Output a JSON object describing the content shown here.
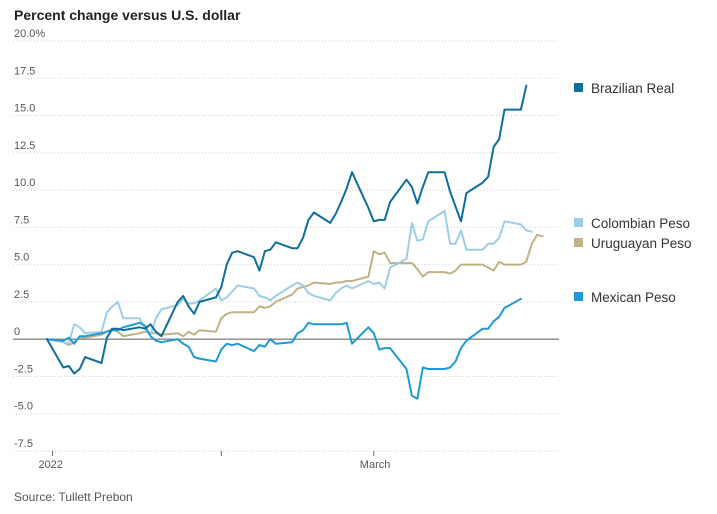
{
  "chart_data": {
    "type": "line",
    "title": "Percent change versus U.S. dollar",
    "source": "Source: Tullett Prebon",
    "xlabel": "",
    "ylabel": "",
    "ylim": [
      -7.5,
      20
    ],
    "y_ticks": [
      {
        "value": 20,
        "label": "20.0%"
      },
      {
        "value": 17.5,
        "label": "17.5"
      },
      {
        "value": 15,
        "label": "15.0"
      },
      {
        "value": 12.5,
        "label": "12.5"
      },
      {
        "value": 10,
        "label": "10.0"
      },
      {
        "value": 7.5,
        "label": "7.5"
      },
      {
        "value": 5,
        "label": "5.0"
      },
      {
        "value": 2.5,
        "label": "2.5"
      },
      {
        "value": 0,
        "label": "0"
      },
      {
        "value": -2.5,
        "label": "-2.5"
      },
      {
        "value": -5,
        "label": "-5.0"
      },
      {
        "value": -7.5,
        "label": "-7.5"
      }
    ],
    "x_range": [
      "2021-12-31",
      "2022-04-04"
    ],
    "x_ticks": [
      {
        "date": "2022-01-01",
        "label": "2022"
      },
      {
        "date": "2022-02-01",
        "label": ""
      },
      {
        "date": "2022-03-01",
        "label": "March"
      }
    ],
    "grid": true,
    "legend_placement": "right",
    "series": [
      {
        "name": "Brazilian Real",
        "color": "#0f6e9b",
        "points": [
          [
            "2021-12-31",
            0
          ],
          [
            "2022-01-03",
            -1.9
          ],
          [
            "2022-01-04",
            -1.8
          ],
          [
            "2022-01-05",
            -2.3
          ],
          [
            "2022-01-06",
            -2.0
          ],
          [
            "2022-01-07",
            -1.2
          ],
          [
            "2022-01-10",
            -1.6
          ],
          [
            "2022-01-11",
            0.1
          ],
          [
            "2022-01-12",
            0.7
          ],
          [
            "2022-01-13",
            0.7
          ],
          [
            "2022-01-14",
            0.6
          ],
          [
            "2022-01-17",
            0.8
          ],
          [
            "2022-01-18",
            0.7
          ],
          [
            "2022-01-19",
            1.0
          ],
          [
            "2022-01-20",
            0.5
          ],
          [
            "2022-01-21",
            0.2
          ],
          [
            "2022-01-24",
            2.5
          ],
          [
            "2022-01-25",
            2.9
          ],
          [
            "2022-01-26",
            2.2
          ],
          [
            "2022-01-27",
            1.7
          ],
          [
            "2022-01-28",
            2.5
          ],
          [
            "2022-01-31",
            2.8
          ],
          [
            "2022-02-01",
            3.5
          ],
          [
            "2022-02-02",
            5.0
          ],
          [
            "2022-02-03",
            5.8
          ],
          [
            "2022-02-04",
            5.9
          ],
          [
            "2022-02-07",
            5.5
          ],
          [
            "2022-02-08",
            4.6
          ],
          [
            "2022-02-09",
            5.9
          ],
          [
            "2022-02-10",
            6.0
          ],
          [
            "2022-02-11",
            6.5
          ],
          [
            "2022-02-14",
            6.1
          ],
          [
            "2022-02-15",
            6.1
          ],
          [
            "2022-02-16",
            6.8
          ],
          [
            "2022-02-17",
            8.0
          ],
          [
            "2022-02-18",
            8.5
          ],
          [
            "2022-02-21",
            7.8
          ],
          [
            "2022-02-22",
            8.4
          ],
          [
            "2022-02-23",
            9.2
          ],
          [
            "2022-02-24",
            10.1
          ],
          [
            "2022-02-25",
            11.2
          ],
          [
            "2022-02-28",
            8.8
          ],
          [
            "2022-03-01",
            7.9
          ],
          [
            "2022-03-02",
            8.0
          ],
          [
            "2022-03-03",
            8.0
          ],
          [
            "2022-03-04",
            9.2
          ],
          [
            "2022-03-07",
            10.7
          ],
          [
            "2022-03-08",
            10.2
          ],
          [
            "2022-03-09",
            9.1
          ],
          [
            "2022-03-10",
            10.2
          ],
          [
            "2022-03-11",
            11.2
          ],
          [
            "2022-03-14",
            11.2
          ],
          [
            "2022-03-15",
            9.9
          ],
          [
            "2022-03-16",
            8.9
          ],
          [
            "2022-03-17",
            7.9
          ],
          [
            "2022-03-18",
            9.8
          ],
          [
            "2022-03-21",
            10.5
          ],
          [
            "2022-03-22",
            10.9
          ],
          [
            "2022-03-23",
            12.9
          ],
          [
            "2022-03-24",
            13.4
          ],
          [
            "2022-03-25",
            15.4
          ],
          [
            "2022-03-28",
            15.4
          ],
          [
            "2022-03-29",
            17.0
          ]
        ]
      },
      {
        "name": "Colombian Peso",
        "color": "#9ecde6",
        "points": [
          [
            "2021-12-31",
            0
          ],
          [
            "2022-01-03",
            -0.2
          ],
          [
            "2022-01-04",
            -0.3
          ],
          [
            "2022-01-05",
            1.0
          ],
          [
            "2022-01-06",
            0.8
          ],
          [
            "2022-01-07",
            0.4
          ],
          [
            "2022-01-10",
            0.5
          ],
          [
            "2022-01-11",
            1.8
          ],
          [
            "2022-01-12",
            2.2
          ],
          [
            "2022-01-13",
            2.5
          ],
          [
            "2022-01-14",
            1.4
          ],
          [
            "2022-01-17",
            1.4
          ],
          [
            "2022-01-18",
            0.7
          ],
          [
            "2022-01-19",
            0.3
          ],
          [
            "2022-01-20",
            1.4
          ],
          [
            "2022-01-21",
            2.0
          ],
          [
            "2022-01-24",
            2.3
          ],
          [
            "2022-01-25",
            2.7
          ],
          [
            "2022-01-26",
            2.4
          ],
          [
            "2022-01-27",
            2.4
          ],
          [
            "2022-01-28",
            2.6
          ],
          [
            "2022-01-31",
            3.4
          ],
          [
            "2022-02-01",
            2.6
          ],
          [
            "2022-02-02",
            2.8
          ],
          [
            "2022-02-03",
            3.2
          ],
          [
            "2022-02-04",
            3.6
          ],
          [
            "2022-02-07",
            3.4
          ],
          [
            "2022-02-08",
            2.9
          ],
          [
            "2022-02-09",
            2.8
          ],
          [
            "2022-02-10",
            2.6
          ],
          [
            "2022-02-11",
            2.9
          ],
          [
            "2022-02-14",
            3.6
          ],
          [
            "2022-02-15",
            3.8
          ],
          [
            "2022-02-16",
            3.6
          ],
          [
            "2022-02-17",
            3.1
          ],
          [
            "2022-02-18",
            2.9
          ],
          [
            "2022-02-21",
            2.6
          ],
          [
            "2022-02-22",
            3.1
          ],
          [
            "2022-02-23",
            3.4
          ],
          [
            "2022-02-24",
            3.6
          ],
          [
            "2022-02-25",
            3.4
          ],
          [
            "2022-02-28",
            3.9
          ],
          [
            "2022-03-01",
            3.7
          ],
          [
            "2022-03-02",
            3.8
          ],
          [
            "2022-03-03",
            3.4
          ],
          [
            "2022-03-04",
            4.8
          ],
          [
            "2022-03-07",
            5.4
          ],
          [
            "2022-03-08",
            7.8
          ],
          [
            "2022-03-09",
            6.6
          ],
          [
            "2022-03-10",
            6.7
          ],
          [
            "2022-03-11",
            7.9
          ],
          [
            "2022-03-14",
            8.6
          ],
          [
            "2022-03-15",
            6.4
          ],
          [
            "2022-03-16",
            6.4
          ],
          [
            "2022-03-17",
            7.3
          ],
          [
            "2022-03-18",
            6.0
          ],
          [
            "2022-03-21",
            6.0
          ],
          [
            "2022-03-22",
            6.4
          ],
          [
            "2022-03-23",
            6.4
          ],
          [
            "2022-03-24",
            6.8
          ],
          [
            "2022-03-25",
            7.9
          ],
          [
            "2022-03-28",
            7.7
          ],
          [
            "2022-03-29",
            7.3
          ],
          [
            "2022-03-30",
            7.2
          ]
        ]
      },
      {
        "name": "Uruguayan Peso",
        "color": "#bfb285",
        "points": [
          [
            "2021-12-31",
            0
          ],
          [
            "2022-01-03",
            -0.2
          ],
          [
            "2022-01-04",
            -0.4
          ],
          [
            "2022-01-05",
            -0.2
          ],
          [
            "2022-01-06",
            0.1
          ],
          [
            "2022-01-07",
            0.1
          ],
          [
            "2022-01-10",
            0.3
          ],
          [
            "2022-01-11",
            0.5
          ],
          [
            "2022-01-12",
            0.7
          ],
          [
            "2022-01-13",
            0.5
          ],
          [
            "2022-01-14",
            0.2
          ],
          [
            "2022-01-17",
            0.4
          ],
          [
            "2022-01-18",
            0.5
          ],
          [
            "2022-01-19",
            0.4
          ],
          [
            "2022-01-20",
            0.4
          ],
          [
            "2022-01-21",
            0.3
          ],
          [
            "2022-01-24",
            0.4
          ],
          [
            "2022-01-25",
            0.2
          ],
          [
            "2022-01-26",
            0.5
          ],
          [
            "2022-01-27",
            0.3
          ],
          [
            "2022-01-28",
            0.6
          ],
          [
            "2022-01-31",
            0.5
          ],
          [
            "2022-02-01",
            1.4
          ],
          [
            "2022-02-02",
            1.7
          ],
          [
            "2022-02-03",
            1.8
          ],
          [
            "2022-02-04",
            1.8
          ],
          [
            "2022-02-07",
            1.8
          ],
          [
            "2022-02-08",
            2.2
          ],
          [
            "2022-02-09",
            2.1
          ],
          [
            "2022-02-10",
            2.2
          ],
          [
            "2022-02-11",
            2.5
          ],
          [
            "2022-02-14",
            3.0
          ],
          [
            "2022-02-15",
            3.4
          ],
          [
            "2022-02-16",
            3.5
          ],
          [
            "2022-02-17",
            3.6
          ],
          [
            "2022-02-18",
            3.8
          ],
          [
            "2022-02-21",
            3.7
          ],
          [
            "2022-02-22",
            3.8
          ],
          [
            "2022-02-23",
            3.8
          ],
          [
            "2022-02-24",
            3.9
          ],
          [
            "2022-02-25",
            3.9
          ],
          [
            "2022-02-28",
            4.2
          ],
          [
            "2022-03-01",
            5.9
          ],
          [
            "2022-03-02",
            5.7
          ],
          [
            "2022-03-03",
            5.8
          ],
          [
            "2022-03-04",
            5.1
          ],
          [
            "2022-03-07",
            5.1
          ],
          [
            "2022-03-08",
            5.1
          ],
          [
            "2022-03-09",
            4.7
          ],
          [
            "2022-03-10",
            4.2
          ],
          [
            "2022-03-11",
            4.5
          ],
          [
            "2022-03-14",
            4.5
          ],
          [
            "2022-03-15",
            4.4
          ],
          [
            "2022-03-16",
            4.6
          ],
          [
            "2022-03-17",
            5.0
          ],
          [
            "2022-03-18",
            5.0
          ],
          [
            "2022-03-21",
            5.0
          ],
          [
            "2022-03-22",
            4.8
          ],
          [
            "2022-03-23",
            4.6
          ],
          [
            "2022-03-24",
            5.2
          ],
          [
            "2022-03-25",
            5.0
          ],
          [
            "2022-03-28",
            5.0
          ],
          [
            "2022-03-29",
            5.2
          ],
          [
            "2022-03-30",
            6.4
          ],
          [
            "2022-03-31",
            7.0
          ],
          [
            "2022-04-01",
            6.9
          ]
        ]
      },
      {
        "name": "Mexican Peso",
        "color": "#1e9ad6",
        "points": [
          [
            "2021-12-31",
            0
          ],
          [
            "2022-01-03",
            -0.1
          ],
          [
            "2022-01-04",
            0.1
          ],
          [
            "2022-01-05",
            -0.3
          ],
          [
            "2022-01-06",
            0.2
          ],
          [
            "2022-01-07",
            0.2
          ],
          [
            "2022-01-10",
            0.4
          ],
          [
            "2022-01-11",
            0.5
          ],
          [
            "2022-01-12",
            0.6
          ],
          [
            "2022-01-13",
            0.6
          ],
          [
            "2022-01-14",
            0.8
          ],
          [
            "2022-01-17",
            1.1
          ],
          [
            "2022-01-18",
            0.9
          ],
          [
            "2022-01-19",
            0.2
          ],
          [
            "2022-01-20",
            -0.1
          ],
          [
            "2022-01-21",
            -0.2
          ],
          [
            "2022-01-24",
            0.0
          ],
          [
            "2022-01-25",
            -0.3
          ],
          [
            "2022-01-26",
            -0.5
          ],
          [
            "2022-01-27",
            -1.2
          ],
          [
            "2022-01-28",
            -1.3
          ],
          [
            "2022-01-31",
            -1.5
          ],
          [
            "2022-02-01",
            -0.7
          ],
          [
            "2022-02-02",
            -0.3
          ],
          [
            "2022-02-03",
            -0.4
          ],
          [
            "2022-02-04",
            -0.3
          ],
          [
            "2022-02-07",
            -0.8
          ],
          [
            "2022-02-08",
            -0.4
          ],
          [
            "2022-02-09",
            -0.5
          ],
          [
            "2022-02-10",
            0.0
          ],
          [
            "2022-02-11",
            -0.3
          ],
          [
            "2022-02-14",
            -0.2
          ],
          [
            "2022-02-15",
            0.4
          ],
          [
            "2022-02-16",
            0.6
          ],
          [
            "2022-02-17",
            1.1
          ],
          [
            "2022-02-18",
            1.0
          ],
          [
            "2022-02-21",
            1.0
          ],
          [
            "2022-02-22",
            1.0
          ],
          [
            "2022-02-23",
            1.0
          ],
          [
            "2022-02-24",
            1.1
          ],
          [
            "2022-02-25",
            -0.3
          ],
          [
            "2022-02-28",
            0.8
          ],
          [
            "2022-03-01",
            0.4
          ],
          [
            "2022-03-02",
            -0.7
          ],
          [
            "2022-03-03",
            -0.6
          ],
          [
            "2022-03-04",
            -0.6
          ],
          [
            "2022-03-07",
            -2.0
          ],
          [
            "2022-03-08",
            -3.8
          ],
          [
            "2022-03-09",
            -4.0
          ],
          [
            "2022-03-10",
            -1.9
          ],
          [
            "2022-03-11",
            -2.0
          ],
          [
            "2022-03-14",
            -2.0
          ],
          [
            "2022-03-15",
            -1.9
          ],
          [
            "2022-03-16",
            -1.5
          ],
          [
            "2022-03-17",
            -0.6
          ],
          [
            "2022-03-18",
            -0.1
          ],
          [
            "2022-03-21",
            0.7
          ],
          [
            "2022-03-22",
            0.7
          ],
          [
            "2022-03-23",
            1.2
          ],
          [
            "2022-03-24",
            1.5
          ],
          [
            "2022-03-25",
            2.1
          ],
          [
            "2022-03-28",
            2.7
          ]
        ]
      }
    ]
  }
}
